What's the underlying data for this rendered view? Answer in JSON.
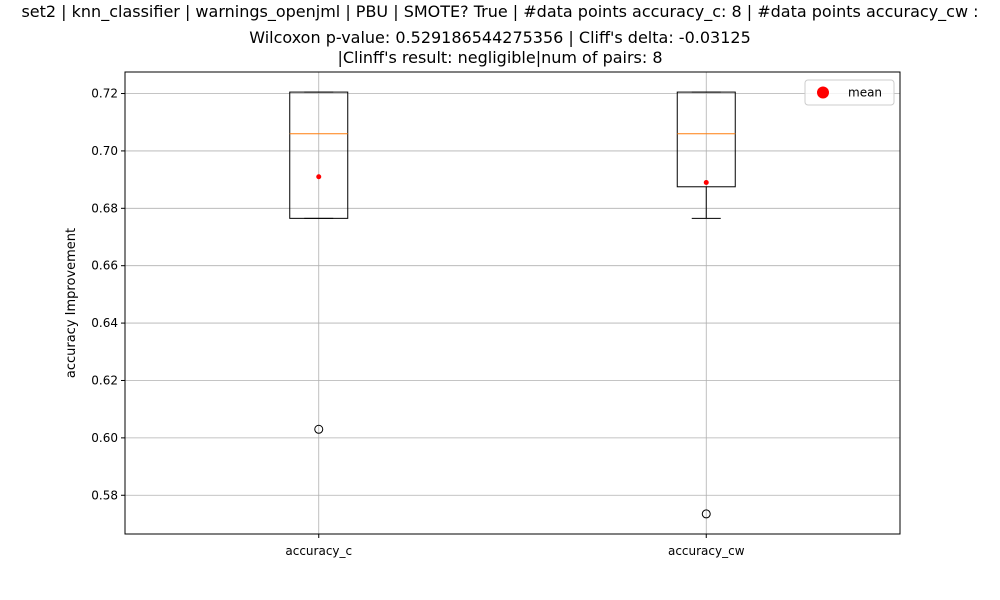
{
  "chart_data": {
    "type": "box",
    "title_lines": [
      "set2 | knn_classifier | warnings_openjml | PBU | SMOTE? True | #data points accuracy_c: 8 | #data points accuracy_cw :",
      "Wilcoxon p-value: 0.529186544275356 | Cliff's delta: -0.03125",
      "|Clinff's result: negligible|num of pairs: 8"
    ],
    "xlabel": "",
    "ylabel": "accuracy Improvement",
    "categories": [
      "accuracy_c",
      "accuracy_cw"
    ],
    "ylim": [
      0.5665,
      0.7275
    ],
    "yticks": [
      0.58,
      0.6,
      0.62,
      0.64,
      0.66,
      0.68,
      0.7,
      0.72
    ],
    "ytick_labels": [
      "0.58",
      "0.60",
      "0.62",
      "0.64",
      "0.66",
      "0.68",
      "0.70",
      "0.72"
    ],
    "grid": true,
    "legend": {
      "position": "top-right",
      "entries": [
        "mean"
      ]
    },
    "boxes": [
      {
        "name": "accuracy_c",
        "whisker_low": 0.6765,
        "q1": 0.6765,
        "median": 0.706,
        "q3": 0.7205,
        "whisker_high": 0.7205,
        "mean": 0.691,
        "outliers": [
          0.603
        ]
      },
      {
        "name": "accuracy_cw",
        "whisker_low": 0.6765,
        "q1": 0.6875,
        "median": 0.706,
        "q3": 0.7205,
        "whisker_high": 0.7205,
        "mean": 0.689,
        "outliers": [
          0.5735
        ]
      }
    ],
    "colors": {
      "box": "#000000",
      "median": "#ff7f0e",
      "mean": "#ff0000",
      "grid": "#b0b0b0"
    }
  }
}
